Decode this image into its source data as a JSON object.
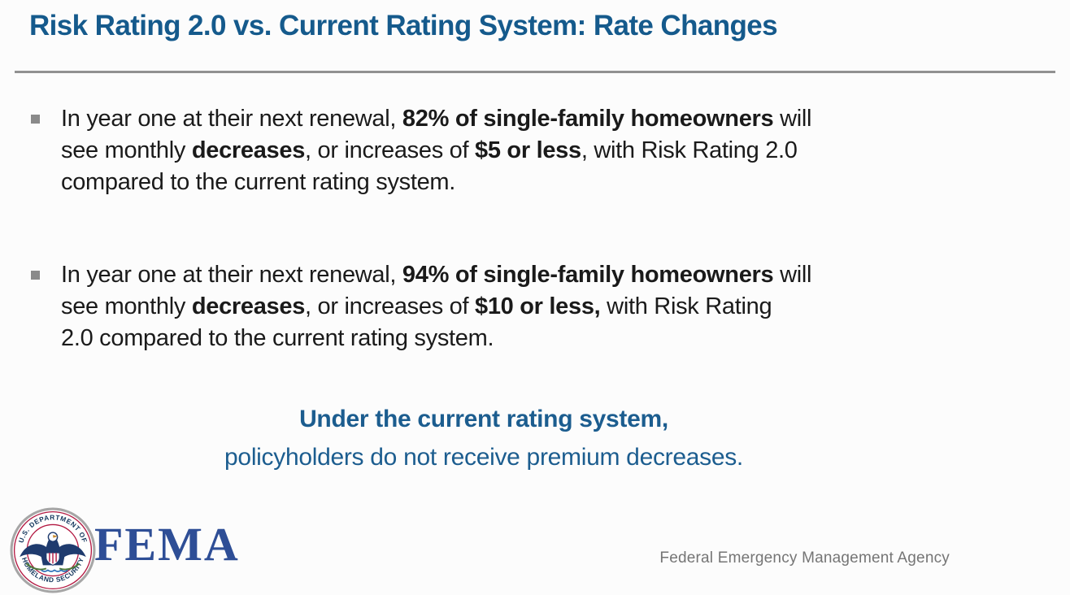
{
  "colors": {
    "title_blue": "#155A8C",
    "body_text": "#1A1A1A",
    "bullet_gray": "#8A8A8A",
    "divider_gray": "#919191",
    "callout_blue": "#1C5D8F",
    "fema_blue": "#2E4E96",
    "footer_gray": "#757575",
    "seal_navy": "#12355C",
    "seal_red": "#B31942"
  },
  "slide": {
    "title": "Risk Rating 2.0 vs. Current Rating System: Rate Changes",
    "bullets": [
      {
        "lines": [
          [
            {
              "t": "In year one at their next renewal, ",
              "b": false
            },
            {
              "t": "82% of single-family homeowners",
              "b": true
            },
            {
              "t": " will",
              "b": false
            }
          ],
          [
            {
              "t": "see monthly ",
              "b": false
            },
            {
              "t": "decreases",
              "b": true
            },
            {
              "t": ", or increases of ",
              "b": false
            },
            {
              "t": "$5 or less",
              "b": true
            },
            {
              "t": ", with Risk Rating 2.0",
              "b": false
            }
          ],
          [
            {
              "t": "compared to the current rating system.",
              "b": false
            }
          ]
        ]
      },
      {
        "lines": [
          [
            {
              "t": "In year one at their next renewal, ",
              "b": false
            },
            {
              "t": "94% of single-family homeowners",
              "b": true
            },
            {
              "t": " will",
              "b": false
            }
          ],
          [
            {
              "t": "see monthly ",
              "b": false
            },
            {
              "t": "decreases",
              "b": true
            },
            {
              "t": ", or increases of ",
              "b": false
            },
            {
              "t": "$10 or less,",
              "b": true
            },
            {
              "t": " with Risk Rating",
              "b": false
            }
          ],
          [
            {
              "t": "2.0 compared to the current rating system.",
              "b": false
            }
          ]
        ]
      }
    ],
    "callout": {
      "line1": "Under the current rating system,",
      "line2": "policyholders do not receive premium decreases."
    },
    "footer": {
      "seal_text_top": "U.S. DEPARTMENT OF",
      "seal_text_bottom": "HOMELAND SECURITY",
      "wordmark": "FEMA",
      "agency_label": "Federal Emergency Management Agency"
    }
  }
}
